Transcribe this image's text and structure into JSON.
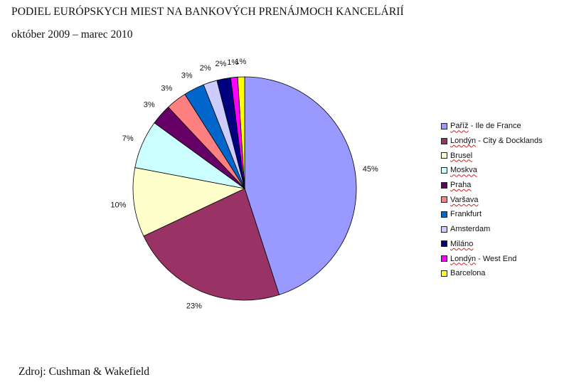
{
  "title": "PODIEL EURÓPSKYCH MIEST NA BANKOVÝCH PRENÁJMOCH KANCELÁRIÍ",
  "subtitle": "október 2009 – marec 2010",
  "source": "Zdroj: Cushman & Wakefield",
  "chart_data": {
    "type": "pie",
    "title": "PODIEL EURÓPSKYCH MIEST NA BANKOVÝCH PRENÁJMOCH KANCELÁRIÍ",
    "subtitle": "október 2009 – marec 2010",
    "legend_position": "right",
    "slices": [
      {
        "label": "Paříž - Ile de France",
        "value": 45,
        "pct_label": "45%",
        "color": "#9999ff"
      },
      {
        "label": "Londýn - City & Docklands",
        "value": 23,
        "pct_label": "23%",
        "color": "#993366"
      },
      {
        "label": "Brusel",
        "value": 10,
        "pct_label": "10%",
        "color": "#ffffcc"
      },
      {
        "label": "Moskva",
        "value": 7,
        "pct_label": "7%",
        "color": "#ccffff"
      },
      {
        "label": "Praha",
        "value": 3,
        "pct_label": "3%",
        "color": "#660066"
      },
      {
        "label": "Varšava",
        "value": 3,
        "pct_label": "3%",
        "color": "#ff8080"
      },
      {
        "label": "Frankfurt",
        "value": 3,
        "pct_label": "3%",
        "color": "#0066cc"
      },
      {
        "label": "Amsterdam",
        "value": 2,
        "pct_label": "2%",
        "color": "#ccccff"
      },
      {
        "label": "Miláno",
        "value": 2,
        "pct_label": "2%",
        "color": "#000080"
      },
      {
        "label": "Londýn - West End",
        "value": 1,
        "pct_label": "1%",
        "color": "#ff00ff"
      },
      {
        "label": "Barcelona",
        "value": 1,
        "pct_label": "1%",
        "color": "#ffff00"
      }
    ]
  }
}
